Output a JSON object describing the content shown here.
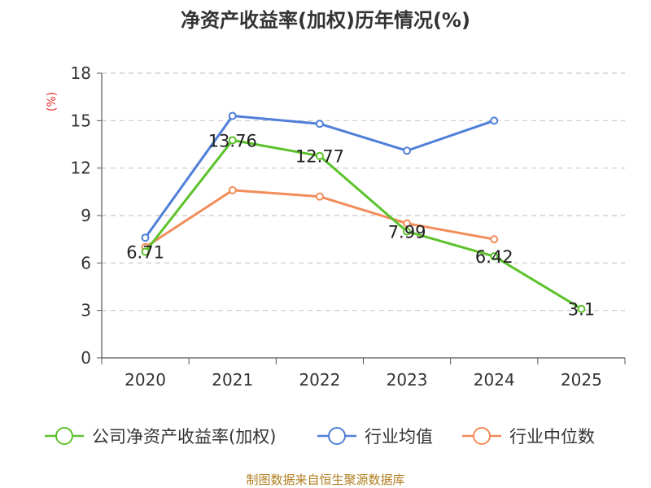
{
  "chart_data": {
    "type": "line",
    "title": "净资产收益率(加权)历年情况(%)",
    "ylabel": "(%)",
    "xlabel": "",
    "ylim": [
      0,
      18
    ],
    "yticks": [
      0,
      3,
      6,
      9,
      12,
      15,
      18
    ],
    "grid": true,
    "legend_position": "bottom",
    "categories": [
      "2020",
      "2021",
      "2022",
      "2023",
      "2024",
      "2025"
    ],
    "series": [
      {
        "name": "公司净资产收益率(加权)",
        "color": "#5cc22b",
        "values": [
          6.71,
          13.76,
          12.77,
          7.99,
          6.42,
          3.1
        ],
        "labels": [
          "6.71",
          "13.76",
          "12.77",
          "7.99",
          "6.42",
          "3.1"
        ]
      },
      {
        "name": "行业均值",
        "color": "#4f7fd8",
        "values": [
          7.6,
          15.3,
          14.8,
          13.1,
          15.0,
          null
        ]
      },
      {
        "name": "行业中位数",
        "color": "#f28c5a",
        "values": [
          7.0,
          10.6,
          10.2,
          8.5,
          7.5,
          null
        ]
      }
    ]
  },
  "source": "制图数据来自恒生聚源数据库"
}
